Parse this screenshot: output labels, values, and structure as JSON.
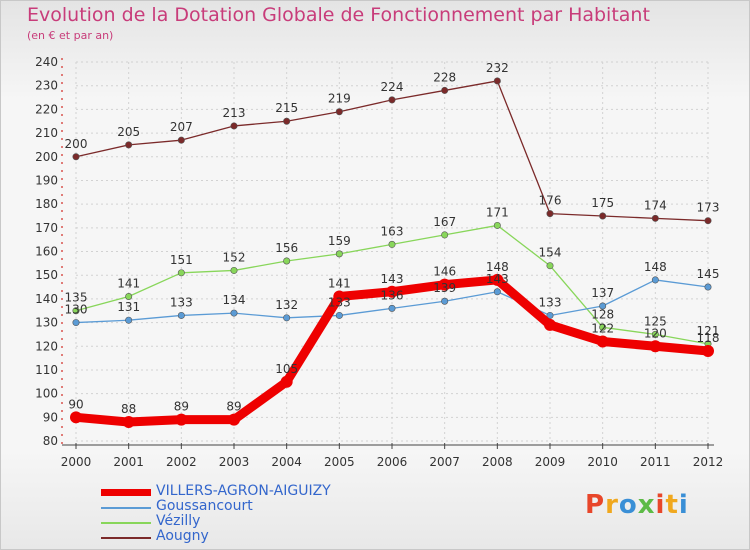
{
  "header": {
    "title": "Evolution de la Dotation Globale de Fonctionnement par Habitant",
    "subtitle": "(en € et par an)"
  },
  "logo": {
    "text": "Proxiti",
    "colors": [
      "#e8462a",
      "#f0a81e",
      "#3a8fd6",
      "#5dbb46"
    ]
  },
  "chart_data": {
    "type": "line",
    "title": "Evolution de la Dotation Globale de Fonctionnement par Habitant",
    "subtitle": "(en € et par an)",
    "x": [
      "2000",
      "2001",
      "2002",
      "2003",
      "2004",
      "2005",
      "2006",
      "2007",
      "2008",
      "2009",
      "2010",
      "2011",
      "2012"
    ],
    "ylim": [
      80,
      240
    ],
    "yticks": [
      80,
      90,
      100,
      110,
      120,
      130,
      140,
      150,
      160,
      170,
      180,
      190,
      200,
      210,
      220,
      230,
      240
    ],
    "grid": true,
    "legend_position": "bottom-left",
    "series": [
      {
        "name": "VILLERS-AGRON-AIGUIZY",
        "color": "#ee0000",
        "values": [
          90,
          88,
          89,
          89,
          105,
          141,
          143,
          146,
          148,
          129,
          122,
          120,
          118
        ],
        "labels": [
          "90",
          "88",
          "89",
          "89",
          "105",
          "141",
          "143",
          "146",
          "148",
          "",
          "122",
          "120",
          "118"
        ]
      },
      {
        "name": "Goussancourt",
        "color": "#5b9bd5",
        "values": [
          130,
          131,
          133,
          134,
          132,
          133,
          136,
          139,
          143,
          133,
          137,
          148,
          145
        ],
        "labels": [
          "130",
          "131",
          "133",
          "134",
          "132",
          "133",
          "136",
          "139",
          "143",
          "133",
          "137",
          "148",
          "145"
        ]
      },
      {
        "name": "Vézilly",
        "color": "#88d65a",
        "values": [
          135,
          141,
          151,
          152,
          156,
          159,
          163,
          167,
          171,
          154,
          128,
          125,
          121
        ],
        "labels": [
          "135",
          "141",
          "151",
          "152",
          "156",
          "159",
          "163",
          "167",
          "171",
          "154",
          "128",
          "125",
          "121"
        ]
      },
      {
        "name": "Aougny",
        "color": "#7b2a2a",
        "values": [
          200,
          205,
          207,
          213,
          215,
          219,
          224,
          228,
          232,
          176,
          175,
          174,
          173
        ],
        "labels": [
          "200",
          "205",
          "207",
          "213",
          "215",
          "219",
          "224",
          "228",
          "232",
          "176",
          "175",
          "174",
          "173"
        ]
      }
    ]
  }
}
